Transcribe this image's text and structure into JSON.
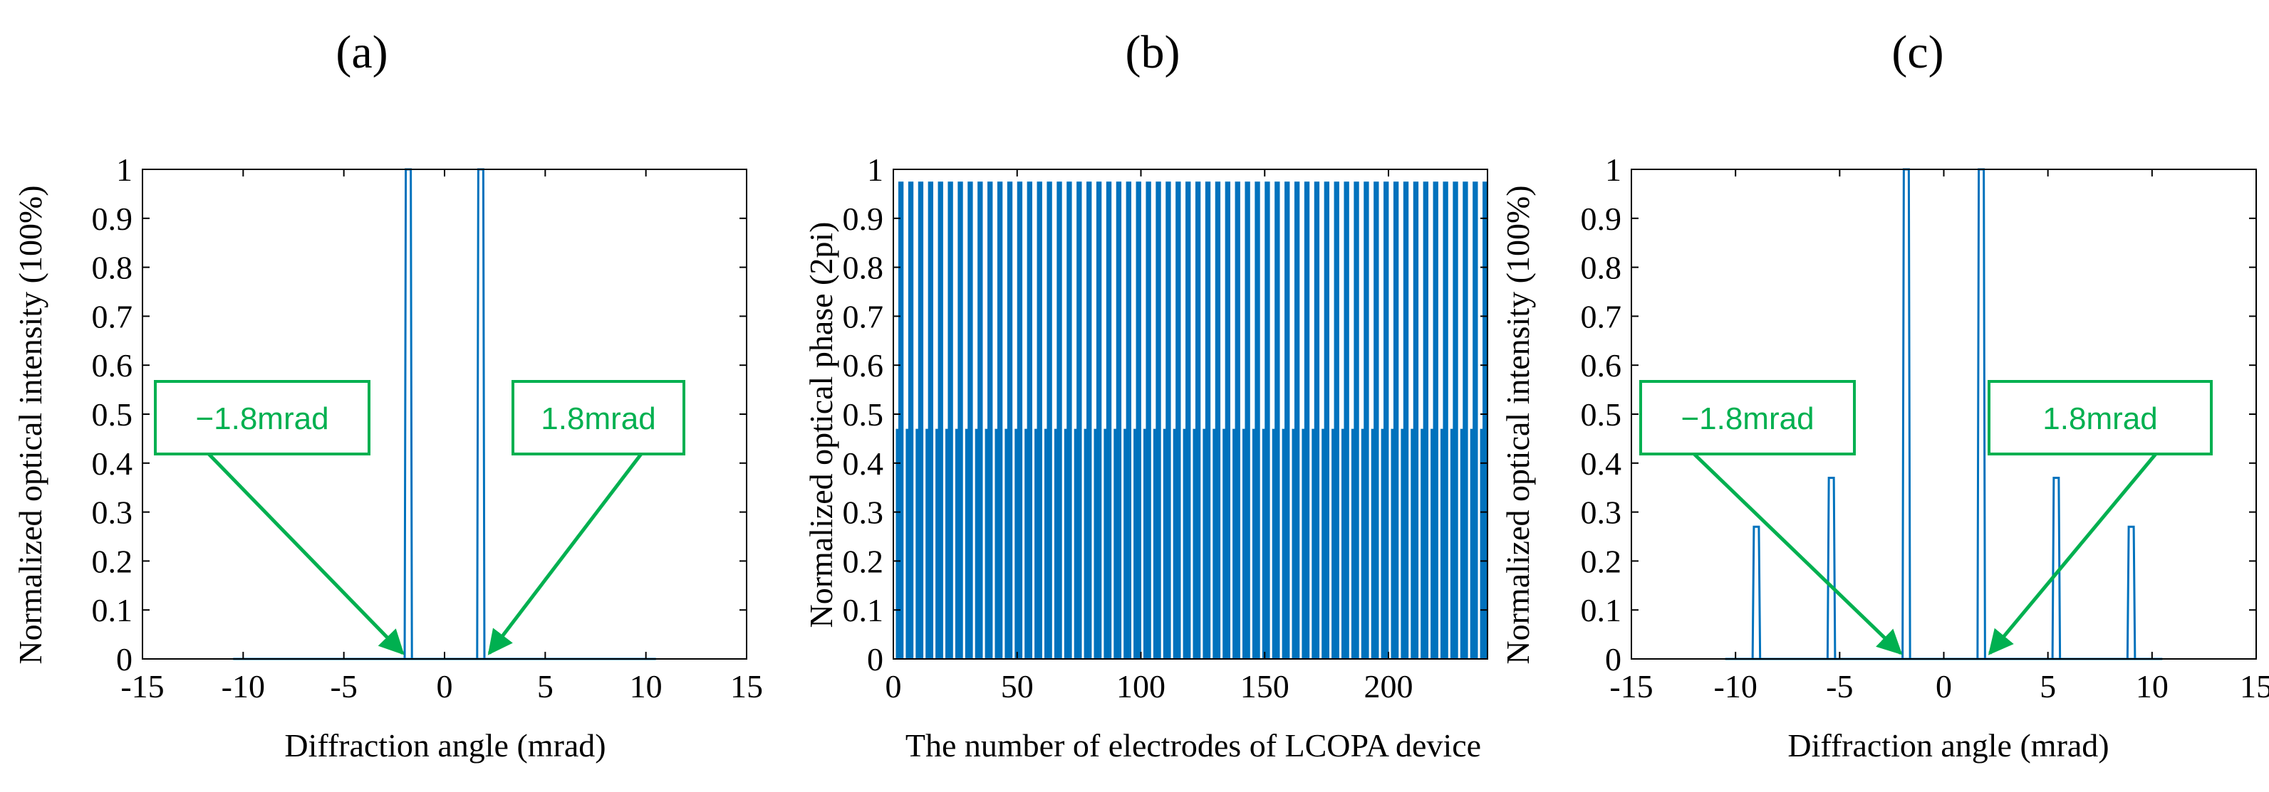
{
  "colors": {
    "series": "#0072BD",
    "annotation": "#00B050",
    "axis": "#000000"
  },
  "chart_data": [
    {
      "panel_label": "(a)",
      "type": "line",
      "title": "",
      "xlabel": "Diffraction angle (mrad)",
      "ylabel": "Normalized optical intensity (100%)",
      "xlim": [
        -15,
        15
      ],
      "ylim": [
        0,
        1
      ],
      "xticks": [
        -15,
        -10,
        -5,
        0,
        5,
        10,
        15
      ],
      "yticks": [
        0,
        0.1,
        0.2,
        0.3,
        0.4,
        0.5,
        0.6,
        0.7,
        0.8,
        0.9,
        1
      ],
      "series": [
        {
          "name": "intensity",
          "baseline": [
            -10.5,
            10.5
          ],
          "peaks": [
            {
              "x": -1.8,
              "y": 1.0
            },
            {
              "x": 1.8,
              "y": 1.0
            }
          ]
        }
      ],
      "annotations": [
        {
          "text": "−1.8mrad",
          "target_x": -1.8,
          "target_y": 0
        },
        {
          "text": "1.8mrad",
          "target_x": 1.8,
          "target_y": 0
        }
      ]
    },
    {
      "panel_label": "(b)",
      "type": "bar",
      "title": "",
      "xlabel": "The number of electrodes of LCOPA device",
      "ylabel": "Normalized optical phase (2pi)",
      "xlim": [
        0,
        240
      ],
      "ylim": [
        0,
        1
      ],
      "xticks": [
        0,
        50,
        100,
        150,
        200
      ],
      "yticks": [
        0,
        0.1,
        0.2,
        0.3,
        0.4,
        0.5,
        0.6,
        0.7,
        0.8,
        0.9,
        1
      ],
      "series": [
        {
          "name": "phase",
          "electrodes": 240,
          "levels": [
            0,
            0.47,
            0.975
          ],
          "pattern": "each group of 4 electrodes: 0, 0.47, 0.975, 0.975 (phase wraps to 0)"
        }
      ]
    },
    {
      "panel_label": "(c)",
      "type": "line",
      "title": "",
      "xlabel": "Diffraction angle (mrad)",
      "ylabel": "Normalized optical intensity (100%)",
      "xlim": [
        -15,
        15
      ],
      "ylim": [
        0,
        1
      ],
      "xticks": [
        -15,
        -10,
        -5,
        0,
        5,
        10,
        15
      ],
      "yticks": [
        0,
        0.1,
        0.2,
        0.3,
        0.4,
        0.5,
        0.6,
        0.7,
        0.8,
        0.9,
        1
      ],
      "series": [
        {
          "name": "intensity",
          "baseline": [
            -10.5,
            10.5
          ],
          "peaks": [
            {
              "x": -9.0,
              "y": 0.27
            },
            {
              "x": -5.4,
              "y": 0.37
            },
            {
              "x": -1.8,
              "y": 1.0
            },
            {
              "x": 1.8,
              "y": 1.0
            },
            {
              "x": 5.4,
              "y": 0.37
            },
            {
              "x": 9.0,
              "y": 0.27
            }
          ]
        }
      ],
      "annotations": [
        {
          "text": "−1.8mrad",
          "target_x": -1.8,
          "target_y": 0
        },
        {
          "text": "1.8mrad",
          "target_x": 1.8,
          "target_y": 0
        }
      ]
    }
  ]
}
